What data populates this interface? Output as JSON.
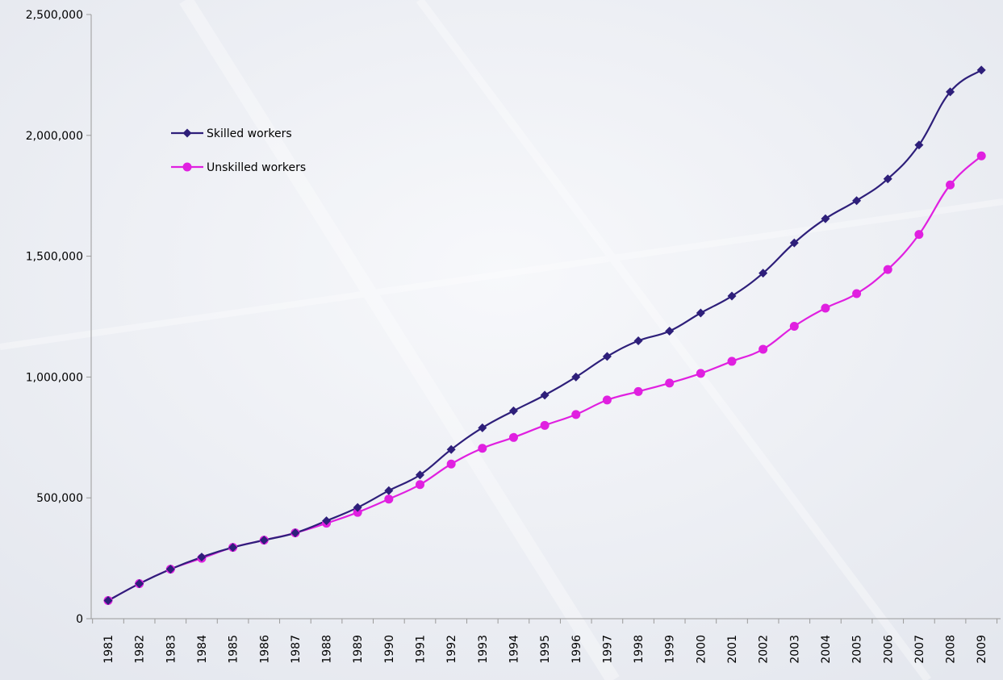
{
  "colors": {
    "background": "#eef0f5",
    "axis": "#9a9a9a"
  },
  "chart_data": {
    "type": "line",
    "title": "",
    "xlabel": "",
    "ylabel": "",
    "ylim": [
      0,
      2500000
    ],
    "y_ticks": [
      "0",
      "500,000",
      "1,000,000",
      "1,500,000",
      "2,000,000",
      "2,500,000"
    ],
    "y_tick_values": [
      0,
      500000,
      1000000,
      1500000,
      2000000,
      2500000
    ],
    "categories": [
      "1981",
      "1982",
      "1983",
      "1984",
      "1985",
      "1986",
      "1987",
      "1988",
      "1989",
      "1990",
      "1991",
      "1992",
      "1993",
      "1994",
      "1995",
      "1996",
      "1997",
      "1998",
      "1999",
      "2000",
      "2001",
      "2002",
      "2003",
      "2004",
      "2005",
      "2006",
      "2007",
      "2008",
      "2009"
    ],
    "legend_position": "upper-left",
    "grid": false,
    "series": [
      {
        "name": "Skilled workers",
        "color": "#2e1f7a",
        "marker": "diamond",
        "values": [
          75000,
          145000,
          205000,
          255000,
          295000,
          325000,
          355000,
          405000,
          460000,
          530000,
          595000,
          700000,
          790000,
          860000,
          925000,
          1000000,
          1085000,
          1150000,
          1190000,
          1265000,
          1335000,
          1430000,
          1555000,
          1655000,
          1730000,
          1820000,
          1960000,
          2180000,
          2270000
        ]
      },
      {
        "name": "Unskilled workers",
        "color": "#e020e0",
        "marker": "circle",
        "values": [
          75000,
          145000,
          205000,
          250000,
          295000,
          325000,
          355000,
          395000,
          440000,
          495000,
          555000,
          640000,
          705000,
          750000,
          800000,
          845000,
          905000,
          940000,
          975000,
          1015000,
          1065000,
          1115000,
          1210000,
          1285000,
          1345000,
          1445000,
          1590000,
          1795000,
          1915000
        ]
      }
    ]
  }
}
